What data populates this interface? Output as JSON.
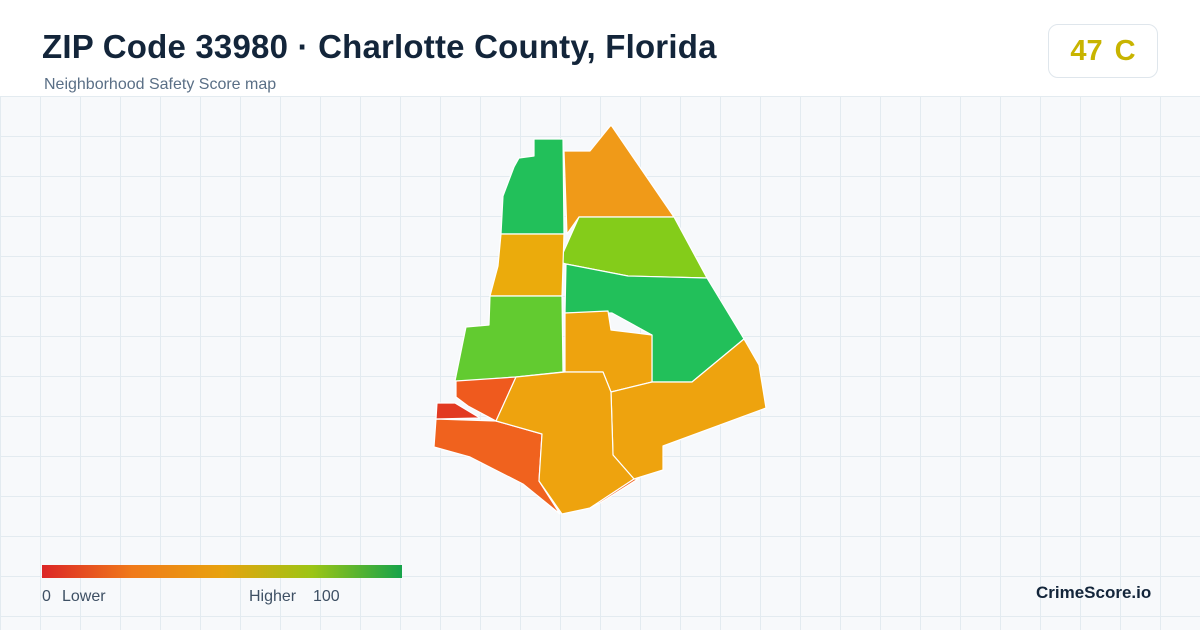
{
  "header": {
    "title": "ZIP Code 33980 · Charlotte County, Florida",
    "subtitle": "Neighborhood Safety Score map"
  },
  "score": {
    "value": "47",
    "grade": "C",
    "color": "#c8b400"
  },
  "legend": {
    "min": "0",
    "low_label": "Lower",
    "high_label": "Higher",
    "max": "100",
    "colors": [
      "#dc2626",
      "#f07a1a",
      "#e8a20e",
      "#9cc515",
      "#16a34a"
    ]
  },
  "brand": "CrimeScore.io",
  "map": {
    "regions": [
      {
        "name": "north-west-tract",
        "color": "#22c05a"
      },
      {
        "name": "north-tract",
        "color": "#f09a18"
      },
      {
        "name": "north-east-tract",
        "color": "#84cc1a"
      },
      {
        "name": "west-upper-tract",
        "color": "#ebab0c"
      },
      {
        "name": "west-middle-tract",
        "color": "#62cb30"
      },
      {
        "name": "east-tract",
        "color": "#22c05a"
      },
      {
        "name": "central-tract",
        "color": "#eea30e"
      },
      {
        "name": "south-east-tract",
        "color": "#eea30e"
      },
      {
        "name": "south-west-tract",
        "color": "#f0621e"
      },
      {
        "name": "west-small-tract",
        "color": "#ef5a1e"
      },
      {
        "name": "far-west-tract",
        "color": "#e23a22"
      },
      {
        "name": "south-central-tract",
        "color": "#eea30e"
      },
      {
        "name": "south-tip-tract",
        "color": "#f0621e"
      }
    ]
  }
}
